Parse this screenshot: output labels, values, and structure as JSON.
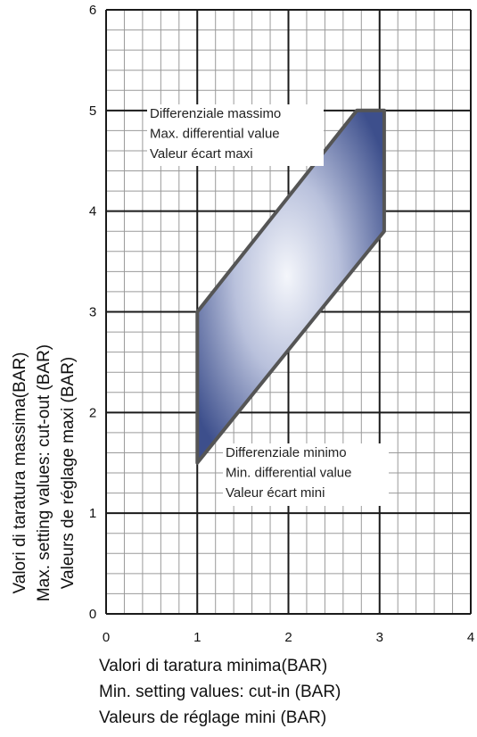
{
  "chart_data": {
    "type": "area",
    "x_range": [
      0,
      4
    ],
    "y_range": [
      0,
      6
    ],
    "x_ticks": [
      "0",
      "1",
      "2",
      "3",
      "4"
    ],
    "y_ticks": [
      "0",
      "1",
      "2",
      "3",
      "4",
      "5",
      "6"
    ],
    "grid": true,
    "region": {
      "points": [
        {
          "x": 1.0,
          "y": 1.5
        },
        {
          "x": 1.0,
          "y": 3.0
        },
        {
          "x": 2.75,
          "y": 5.0
        },
        {
          "x": 3.05,
          "y": 5.0
        },
        {
          "x": 3.05,
          "y": 3.8
        }
      ]
    },
    "annotations": {
      "max_differential": [
        "Differenziale massimo",
        "Max. differential value",
        "Valeur écart maxi"
      ],
      "min_differential": [
        "Differenziale minimo",
        "Min. differential value",
        "Valeur écart mini"
      ]
    },
    "xlabel": [
      "Valori di taratura minima(BAR)",
      "Min. setting values: cut-in (BAR)",
      "Valeurs de réglage mini (BAR)"
    ],
    "ylabel": [
      "Valori di taratura massima(BAR)",
      "Max. setting values: cut-out (BAR)",
      "Valeurs de réglage maxi (BAR)"
    ],
    "colors": {
      "region_dark": "#3d4f8c",
      "region_light": "#f4f6fb",
      "region_outline": "#555555"
    }
  }
}
